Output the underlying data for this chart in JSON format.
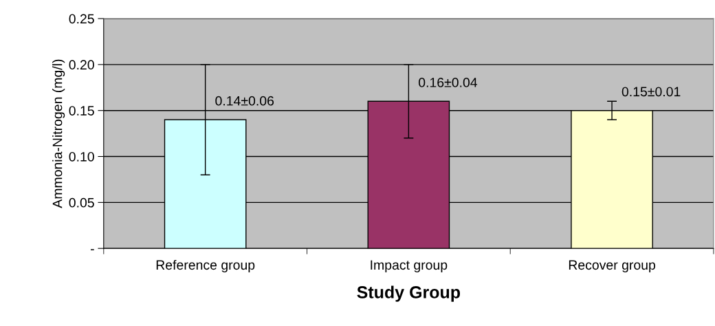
{
  "chart_data": {
    "type": "bar",
    "xlabel": "Study Group",
    "ylabel": "Ammonia-Nitrogen (mg/l)",
    "categories": [
      "Reference group",
      "Impact group",
      "Recover group"
    ],
    "values": [
      0.14,
      0.16,
      0.15
    ],
    "colors": [
      "#ccffff",
      "#993366",
      "#ffffcc"
    ],
    "errors": [
      0.06,
      0.04,
      0.01
    ],
    "value_labels": [
      "0.14±0.06",
      "0.16±0.04",
      "0.15±0.01"
    ],
    "ylim": [
      0,
      0.25
    ],
    "yticks": [
      {
        "value": 0,
        "label": "-"
      },
      {
        "value": 0.05,
        "label": "0.05"
      },
      {
        "value": 0.1,
        "label": "0.10"
      },
      {
        "value": 0.15,
        "label": "0.15"
      },
      {
        "value": 0.2,
        "label": "0.20"
      },
      {
        "value": 0.25,
        "label": "0.25"
      }
    ],
    "grid": "y"
  }
}
